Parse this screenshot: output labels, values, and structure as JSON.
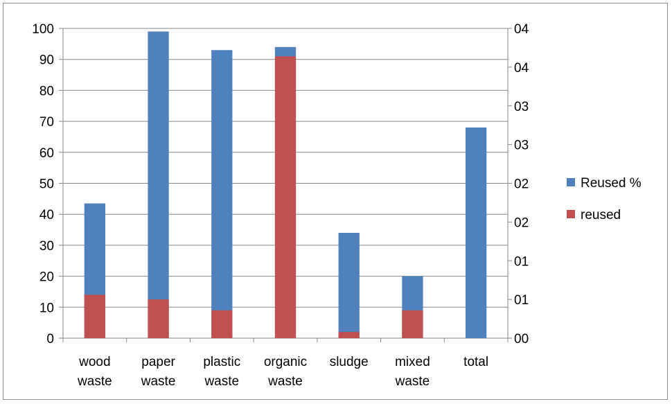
{
  "chart_data": {
    "type": "bar",
    "stacked": true,
    "categories": [
      [
        "wood",
        "waste"
      ],
      [
        "paper",
        "waste"
      ],
      [
        "plastic",
        "waste"
      ],
      [
        "organic",
        "waste"
      ],
      [
        "sludge"
      ],
      [
        "mixed",
        "waste"
      ],
      [
        "total"
      ]
    ],
    "series": [
      {
        "name": "Reused %",
        "color": "#4f81bd",
        "values": [
          43.5,
          99,
          93,
          94,
          34,
          20,
          68
        ]
      },
      {
        "name": "reused",
        "color": "#c0504d",
        "values": [
          14,
          12.5,
          9,
          91,
          2,
          9,
          0
        ]
      }
    ],
    "ylim": [
      0,
      100
    ],
    "y_ticks": [
      "0",
      "10",
      "20",
      "30",
      "40",
      "50",
      "60",
      "70",
      "80",
      "90",
      "100"
    ],
    "y2_ticks": [
      "00",
      "01",
      "01",
      "02",
      "02",
      "03",
      "03",
      "04",
      "04"
    ],
    "grid": true,
    "legend": "right"
  }
}
